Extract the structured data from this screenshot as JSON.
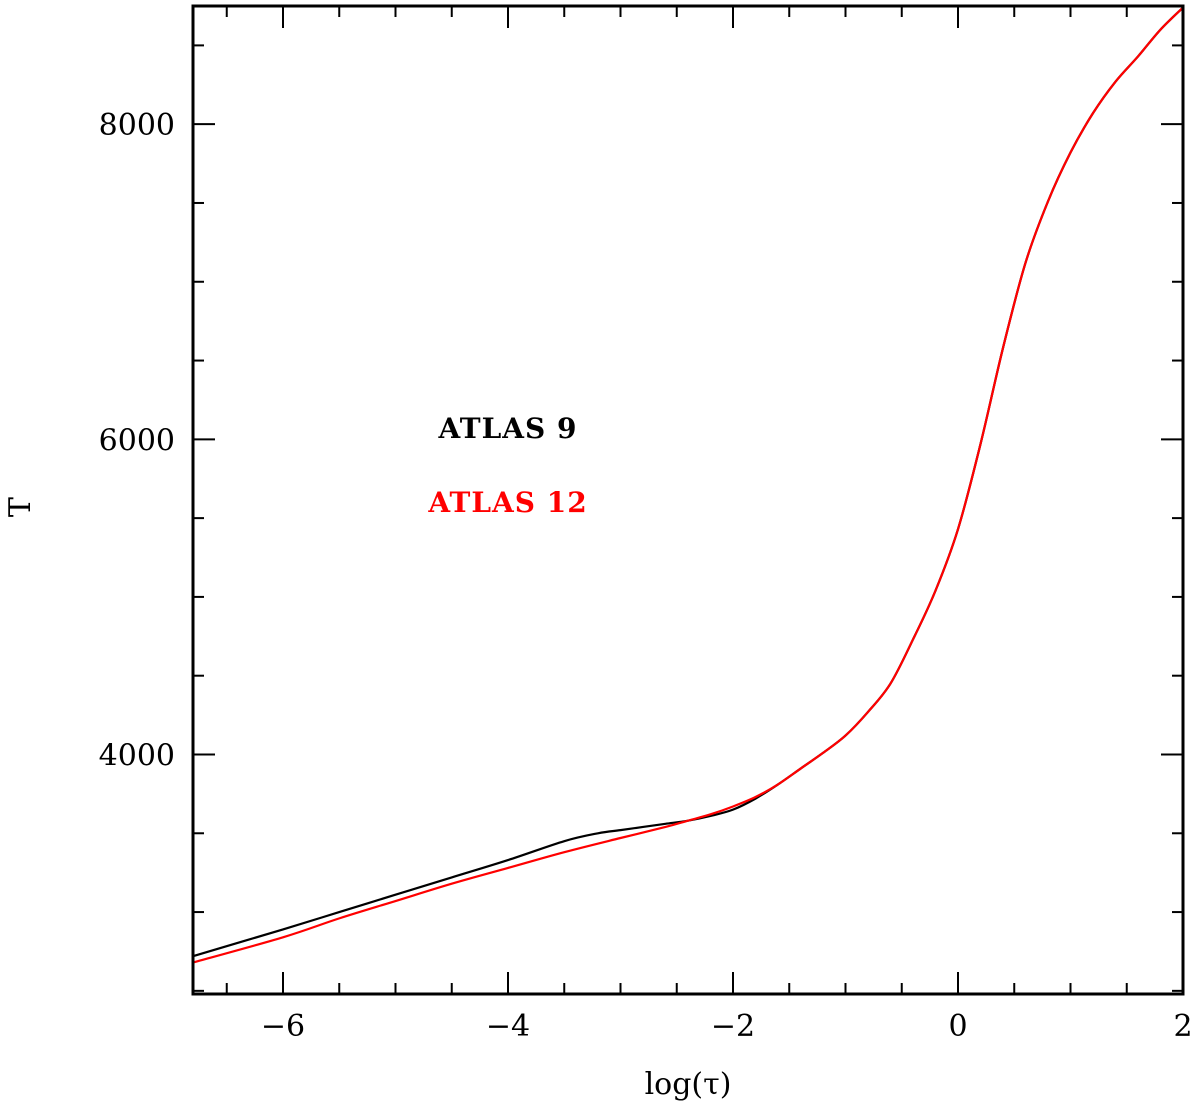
{
  "chart_data": {
    "type": "line",
    "title": "",
    "xlabel": "log(τ)",
    "ylabel": "T",
    "xlim": [
      -6.8,
      2
    ],
    "ylim": [
      2480,
      8750
    ],
    "x_ticks": [
      -6,
      -4,
      -2,
      0,
      2
    ],
    "x_tick_labels": [
      "−6",
      "−4",
      "−2",
      "0",
      "2"
    ],
    "y_ticks": [
      4000,
      6000,
      8000
    ],
    "y_tick_labels": [
      "4000",
      "6000",
      "8000"
    ],
    "x_minor_step": 0.5,
    "y_minor_step": 500,
    "grid": false,
    "legend_placement": "center-left",
    "series": [
      {
        "name": "ATLAS 9",
        "color": "#000000",
        "x": [
          -6.8,
          -6.0,
          -5.5,
          -5.0,
          -4.5,
          -4.0,
          -3.5,
          -3.2,
          -3.0,
          -2.8,
          -2.6,
          -2.4,
          -2.2,
          -2.0,
          -1.8,
          -1.6,
          -1.4,
          -1.2,
          -1.0,
          -0.8,
          -0.6,
          -0.4,
          -0.2,
          0.0,
          0.2,
          0.4,
          0.6,
          0.8,
          1.0,
          1.2,
          1.4,
          1.6,
          1.8,
          2.0
        ],
        "y": [
          2720,
          2890,
          3000,
          3110,
          3220,
          3330,
          3450,
          3500,
          3520,
          3540,
          3560,
          3580,
          3610,
          3650,
          3720,
          3810,
          3910,
          4010,
          4120,
          4270,
          4450,
          4730,
          5040,
          5430,
          5970,
          6580,
          7120,
          7510,
          7820,
          8070,
          8270,
          8430,
          8600,
          8740
        ]
      },
      {
        "name": "ATLAS 12",
        "color": "#ff0000",
        "x": [
          -6.8,
          -6.0,
          -5.5,
          -5.0,
          -4.5,
          -4.0,
          -3.5,
          -3.0,
          -2.6,
          -2.4,
          -2.2,
          -2.0,
          -1.8,
          -1.6,
          -1.4,
          -1.2,
          -1.0,
          -0.8,
          -0.6,
          -0.4,
          -0.2,
          0.0,
          0.2,
          0.4,
          0.6,
          0.8,
          1.0,
          1.2,
          1.4,
          1.6,
          1.8,
          2.0
        ],
        "y": [
          2680,
          2840,
          2960,
          3070,
          3180,
          3280,
          3380,
          3470,
          3540,
          3580,
          3620,
          3670,
          3730,
          3810,
          3910,
          4010,
          4120,
          4270,
          4450,
          4730,
          5040,
          5430,
          5970,
          6580,
          7120,
          7510,
          7820,
          8070,
          8270,
          8430,
          8600,
          8740
        ]
      }
    ]
  }
}
